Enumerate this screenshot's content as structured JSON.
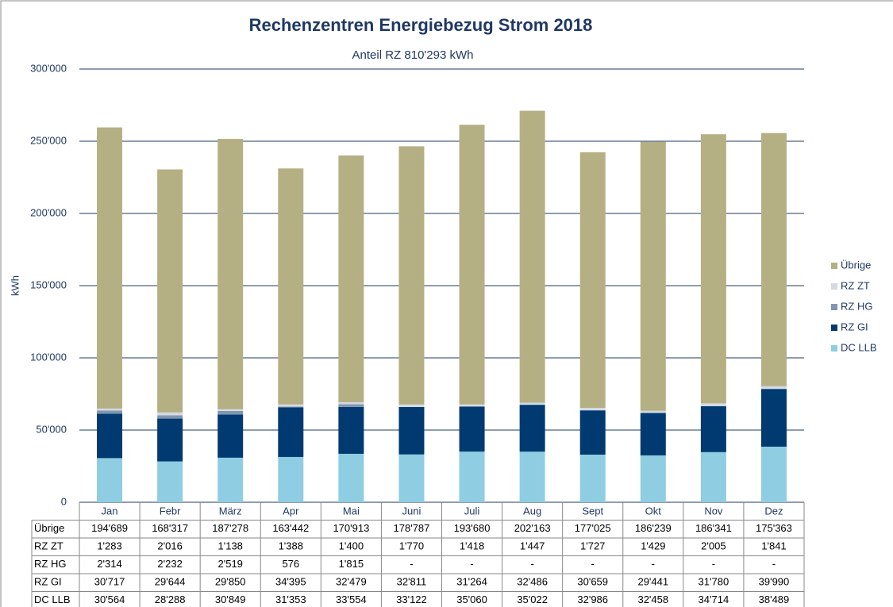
{
  "chart_data": {
    "type": "stacked_bar",
    "title": "Rechenzentren Energiebezug Strom 2018",
    "subtitle": "Anteil RZ 810'293 kWh",
    "y_label": "kWh",
    "categories": [
      "Jan",
      "Febr",
      "März",
      "Apr",
      "Mai",
      "Juni",
      "Juli",
      "Aug",
      "Sept",
      "Okt",
      "Nov",
      "Dez"
    ],
    "series": [
      {
        "name": "DC LLB",
        "color": "#8ecde2",
        "values": [
          30564,
          28288,
          30849,
          31353,
          33554,
          33122,
          35060,
          35022,
          32986,
          32458,
          34714,
          38489
        ],
        "value_labels": [
          "30'564",
          "28'288",
          "30'849",
          "31'353",
          "33'554",
          "33'122",
          "35'060",
          "35'022",
          "32'986",
          "32'458",
          "34'714",
          "38'489"
        ]
      },
      {
        "name": "RZ GI",
        "color": "#003a70",
        "values": [
          30717,
          29644,
          29850,
          34395,
          32479,
          32811,
          31264,
          32486,
          30659,
          29441,
          31780,
          39990
        ],
        "value_labels": [
          "30'717",
          "29'644",
          "29'850",
          "34'395",
          "32'479",
          "32'811",
          "31'264",
          "32'486",
          "30'659",
          "29'441",
          "31'780",
          "39'990"
        ]
      },
      {
        "name": "RZ HG",
        "color": "#8096ae",
        "values": [
          2314,
          2232,
          2519,
          576,
          1815,
          null,
          null,
          null,
          null,
          null,
          null,
          null
        ],
        "value_labels": [
          "2'314",
          "2'232",
          "2'519",
          "576",
          "1'815",
          "-",
          "-",
          "-",
          "-",
          "-",
          "-",
          "-"
        ]
      },
      {
        "name": "RZ ZT",
        "color": "#d4dae4",
        "values": [
          1283,
          2016,
          1138,
          1388,
          1400,
          1770,
          1418,
          1447,
          1727,
          1429,
          2005,
          1841
        ],
        "value_labels": [
          "1'283",
          "2'016",
          "1'138",
          "1'388",
          "1'400",
          "1'770",
          "1'418",
          "1'447",
          "1'727",
          "1'429",
          "2'005",
          "1'841"
        ]
      },
      {
        "name": "Übrige",
        "color": "#b5b084",
        "values": [
          194689,
          168317,
          187278,
          163442,
          170913,
          178787,
          193680,
          202163,
          177025,
          186239,
          186341,
          175363
        ],
        "value_labels": [
          "194'689",
          "168'317",
          "187'278",
          "163'442",
          "170'913",
          "178'787",
          "193'680",
          "202'163",
          "177'025",
          "186'239",
          "186'341",
          "175'363"
        ]
      }
    ],
    "ylim": [
      0,
      300000
    ],
    "yticks": [
      0,
      {
        "value": 50000,
        "label": "50'000"
      },
      {
        "value": 100000,
        "label": "100'000"
      },
      {
        "value": 150000,
        "label": "150'000"
      },
      {
        "value": 200000,
        "label": "200'000"
      },
      {
        "value": 250000,
        "label": "250'000"
      },
      {
        "value": 300000,
        "label": "300'000"
      }
    ],
    "grid": true
  }
}
